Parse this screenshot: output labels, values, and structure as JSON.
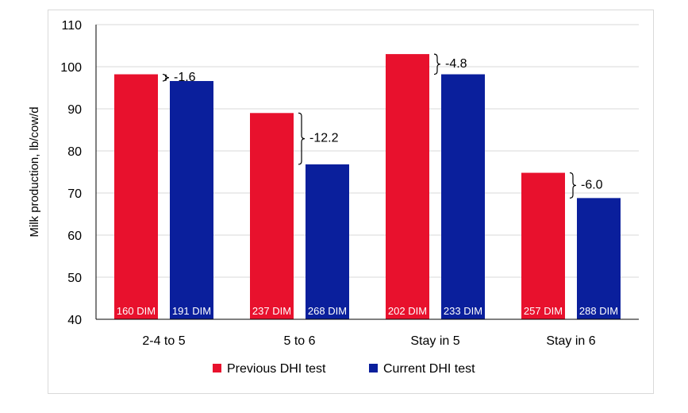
{
  "chart_data": {
    "type": "bar",
    "title": "",
    "xlabel": "",
    "ylabel": "Milk production, lb/cow/d",
    "ylim": [
      40,
      110
    ],
    "yticks": [
      40,
      50,
      60,
      70,
      80,
      90,
      100,
      110
    ],
    "grid": true,
    "legend_position": "bottom",
    "categories": [
      "2-4 to 5",
      "5 to 6",
      "Stay in 5",
      "Stay in 6"
    ],
    "series": [
      {
        "name": "Previous DHI test",
        "color": "#e8112d",
        "values": [
          98.2,
          89.0,
          103.0,
          74.8
        ],
        "bar_labels": [
          "160 DIM",
          "237 DIM",
          "202 DIM",
          "257 DIM"
        ]
      },
      {
        "name": "Current DHI test",
        "color": "#0a1f9c",
        "values": [
          96.6,
          76.8,
          98.2,
          68.8
        ],
        "bar_labels": [
          "191 DIM",
          "268 DIM",
          "233 DIM",
          "288 DIM"
        ]
      }
    ],
    "differences": [
      "-1.6",
      "-12.2",
      "-4.8",
      "-6.0"
    ]
  }
}
